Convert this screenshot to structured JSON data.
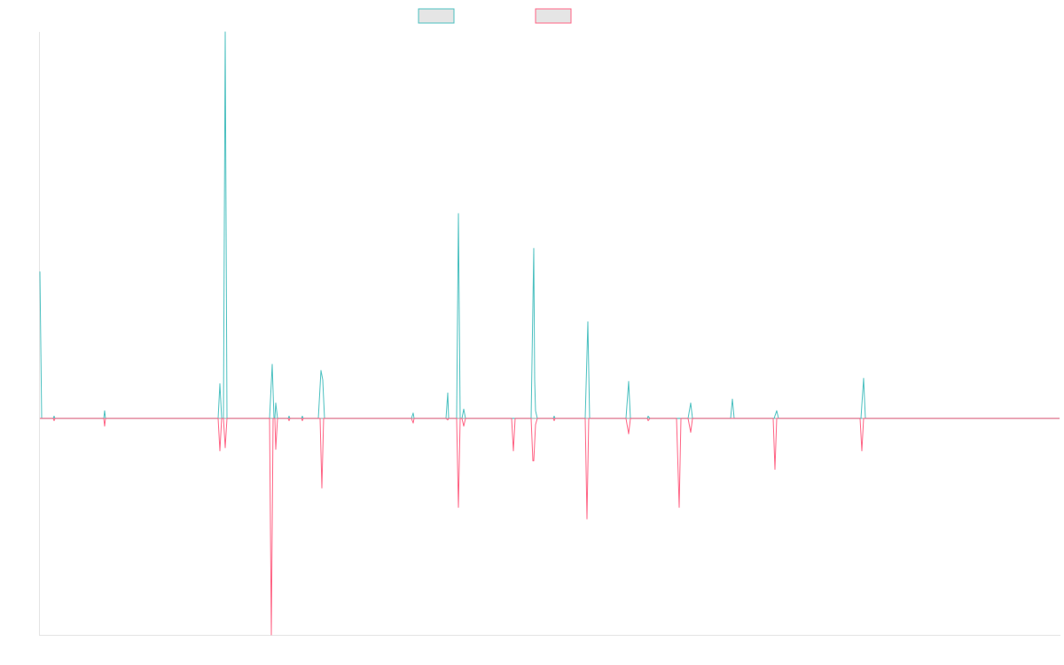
{
  "chart_data": {
    "type": "line",
    "title": "",
    "xlabel": "",
    "ylabel": "",
    "grid": false,
    "legend_position": "top-center",
    "xlim": [
      0,
      1150
    ],
    "ylim": [
      -2.8,
      5.0
    ],
    "series": [
      {
        "color": "#4bc0c0",
        "fill": "#e5e5e5",
        "points": [
          [
            0,
            1.9
          ],
          [
            2,
            0
          ],
          [
            15,
            0
          ],
          [
            16,
            0.03
          ],
          [
            17,
            0
          ],
          [
            72,
            0
          ],
          [
            73,
            0.1
          ],
          [
            74,
            0
          ],
          [
            201,
            0
          ],
          [
            203,
            0.45
          ],
          [
            205,
            0
          ],
          [
            207,
            0
          ],
          [
            209,
            5.0
          ],
          [
            211,
            0
          ],
          [
            259,
            0
          ],
          [
            262,
            0.7
          ],
          [
            264,
            0
          ],
          [
            265,
            0
          ],
          [
            266,
            0.2
          ],
          [
            268,
            0
          ],
          [
            280,
            0
          ],
          [
            281,
            0.03
          ],
          [
            282,
            0
          ],
          [
            295,
            0
          ],
          [
            296,
            0.03
          ],
          [
            297,
            0
          ],
          [
            314,
            0
          ],
          [
            317,
            0.62
          ],
          [
            319,
            0.5
          ],
          [
            321,
            0
          ],
          [
            419,
            0
          ],
          [
            421,
            0.07
          ],
          [
            422,
            0
          ],
          [
            458,
            0
          ],
          [
            460,
            0.33
          ],
          [
            461,
            0
          ],
          [
            470,
            0
          ],
          [
            472,
            2.65
          ],
          [
            474,
            0
          ],
          [
            476,
            0
          ],
          [
            478,
            0.12
          ],
          [
            480,
            0
          ],
          [
            554,
            0
          ],
          [
            557,
            2.2
          ],
          [
            558,
            0.5
          ],
          [
            559,
            0.1
          ],
          [
            561,
            0
          ],
          [
            579,
            0
          ],
          [
            580,
            0.03
          ],
          [
            581,
            0
          ],
          [
            615,
            0
          ],
          [
            618,
            1.25
          ],
          [
            620,
            0
          ],
          [
            661,
            0
          ],
          [
            664,
            0.48
          ],
          [
            666,
            0
          ],
          [
            685,
            0
          ],
          [
            686,
            0.03
          ],
          [
            688,
            0
          ],
          [
            731,
            0
          ],
          [
            734,
            0.2
          ],
          [
            736,
            0
          ],
          [
            779,
            0
          ],
          [
            781,
            0.25
          ],
          [
            783,
            0
          ],
          [
            828,
            0
          ],
          [
            831,
            0.1
          ],
          [
            833,
            0
          ],
          [
            926,
            0
          ],
          [
            929,
            0.52
          ],
          [
            931,
            0
          ],
          [
            1150,
            0
          ]
        ]
      },
      {
        "color": "#ff6384",
        "fill": "#e5e5e5",
        "points": [
          [
            0,
            0
          ],
          [
            15,
            0
          ],
          [
            16,
            -0.03
          ],
          [
            17,
            0
          ],
          [
            72,
            0
          ],
          [
            73,
            -0.1
          ],
          [
            74,
            0
          ],
          [
            201,
            0
          ],
          [
            203,
            -0.42
          ],
          [
            205,
            0
          ],
          [
            207,
            0
          ],
          [
            209,
            -0.38
          ],
          [
            211,
            0
          ],
          [
            259,
            0
          ],
          [
            261,
            -2.8
          ],
          [
            263,
            0
          ],
          [
            265,
            0
          ],
          [
            266,
            -0.4
          ],
          [
            268,
            0
          ],
          [
            280,
            0
          ],
          [
            281,
            -0.03
          ],
          [
            282,
            0
          ],
          [
            295,
            0
          ],
          [
            296,
            -0.03
          ],
          [
            297,
            0
          ],
          [
            316,
            0
          ],
          [
            318,
            -0.9
          ],
          [
            320,
            0
          ],
          [
            419,
            0
          ],
          [
            421,
            -0.06
          ],
          [
            422,
            0
          ],
          [
            458,
            0
          ],
          [
            460,
            -0.02
          ],
          [
            461,
            0
          ],
          [
            470,
            0
          ],
          [
            472,
            -1.15
          ],
          [
            474,
            0
          ],
          [
            476,
            0
          ],
          [
            478,
            -0.1
          ],
          [
            480,
            0
          ],
          [
            532,
            0
          ],
          [
            534,
            -0.42
          ],
          [
            536,
            0
          ],
          [
            554,
            0
          ],
          [
            556,
            -0.55
          ],
          [
            557,
            -0.55
          ],
          [
            559,
            -0.08
          ],
          [
            561,
            0
          ],
          [
            579,
            0
          ],
          [
            580,
            -0.03
          ],
          [
            581,
            0
          ],
          [
            615,
            0
          ],
          [
            617,
            -1.3
          ],
          [
            619,
            0
          ],
          [
            661,
            0
          ],
          [
            664,
            -0.2
          ],
          [
            666,
            0
          ],
          [
            685,
            0
          ],
          [
            686,
            -0.03
          ],
          [
            688,
            0
          ],
          [
            718,
            0
          ],
          [
            721,
            -1.15
          ],
          [
            723,
            0
          ],
          [
            731,
            0
          ],
          [
            734,
            -0.18
          ],
          [
            736,
            0
          ],
          [
            827,
            0
          ],
          [
            829,
            -0.66
          ],
          [
            831,
            0
          ],
          [
            925,
            0
          ],
          [
            927,
            -0.42
          ],
          [
            929,
            0
          ],
          [
            1150,
            0
          ]
        ]
      }
    ]
  }
}
